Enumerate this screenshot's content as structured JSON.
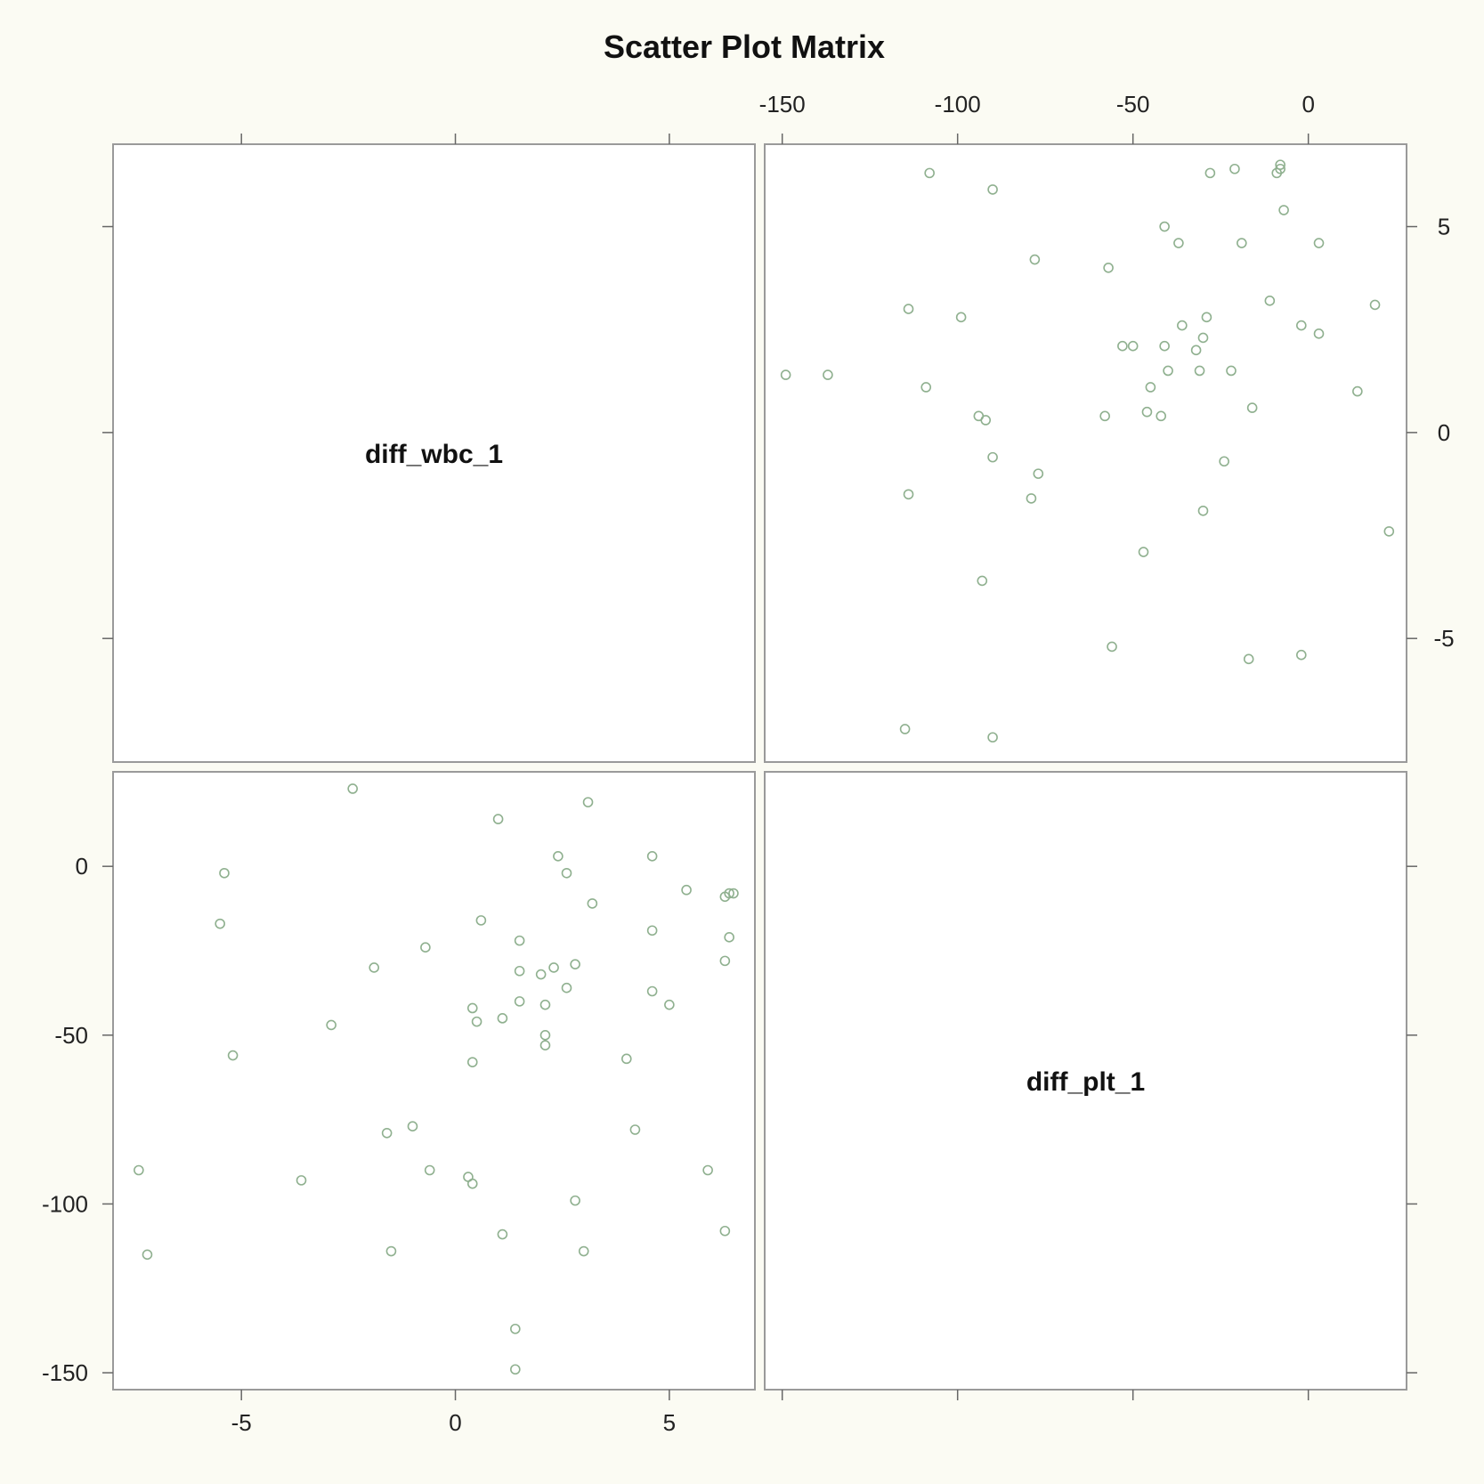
{
  "chart_data": {
    "type": "scatter",
    "title": "Scatter Plot Matrix",
    "variables": [
      "diff_wbc_1",
      "diff_plt_1"
    ],
    "axes": {
      "diff_wbc_1": {
        "range": [
          -8,
          7
        ],
        "ticks": [
          -5,
          0,
          5
        ]
      },
      "diff_plt_1": {
        "range": [
          -155,
          28
        ],
        "ticks": [
          -150,
          -100,
          -50,
          0
        ]
      }
    },
    "grid": false,
    "point_color": "#8fb08f",
    "points": [
      {
        "diff_wbc_1": 6.4,
        "diff_plt_1": -8
      },
      {
        "diff_wbc_1": 6.5,
        "diff_plt_1": -8
      },
      {
        "diff_wbc_1": 6.3,
        "diff_plt_1": -9
      },
      {
        "diff_wbc_1": 5.4,
        "diff_plt_1": -7
      },
      {
        "diff_wbc_1": 6.4,
        "diff_plt_1": -21
      },
      {
        "diff_wbc_1": 6.3,
        "diff_plt_1": -28
      },
      {
        "diff_wbc_1": 4.6,
        "diff_plt_1": 3
      },
      {
        "diff_wbc_1": 4.6,
        "diff_plt_1": -19
      },
      {
        "diff_wbc_1": 4.6,
        "diff_plt_1": -37
      },
      {
        "diff_wbc_1": 5.0,
        "diff_plt_1": -41
      },
      {
        "diff_wbc_1": 3.1,
        "diff_plt_1": 19
      },
      {
        "diff_wbc_1": 3.2,
        "diff_plt_1": -11
      },
      {
        "diff_wbc_1": 2.4,
        "diff_plt_1": 3
      },
      {
        "diff_wbc_1": 2.6,
        "diff_plt_1": -2
      },
      {
        "diff_wbc_1": 2.8,
        "diff_plt_1": -29
      },
      {
        "diff_wbc_1": 2.3,
        "diff_plt_1": -30
      },
      {
        "diff_wbc_1": 2.0,
        "diff_plt_1": -32
      },
      {
        "diff_wbc_1": 2.6,
        "diff_plt_1": -36
      },
      {
        "diff_wbc_1": 2.1,
        "diff_plt_1": -41
      },
      {
        "diff_wbc_1": 1.0,
        "diff_plt_1": 14
      },
      {
        "diff_wbc_1": 1.5,
        "diff_plt_1": -22
      },
      {
        "diff_wbc_1": 1.5,
        "diff_plt_1": -31
      },
      {
        "diff_wbc_1": 1.5,
        "diff_plt_1": -40
      },
      {
        "diff_wbc_1": 0.6,
        "diff_plt_1": -16
      },
      {
        "diff_wbc_1": 0.4,
        "diff_plt_1": -42
      },
      {
        "diff_wbc_1": 0.5,
        "diff_plt_1": -46
      },
      {
        "diff_wbc_1": 1.1,
        "diff_plt_1": -45
      },
      {
        "diff_wbc_1": 2.1,
        "diff_plt_1": -50
      },
      {
        "diff_wbc_1": 2.1,
        "diff_plt_1": -53
      },
      {
        "diff_wbc_1": 0.4,
        "diff_plt_1": -58
      },
      {
        "diff_wbc_1": 4.0,
        "diff_plt_1": -57
      },
      {
        "diff_wbc_1": -0.7,
        "diff_plt_1": -24
      },
      {
        "diff_wbc_1": -1.9,
        "diff_plt_1": -30
      },
      {
        "diff_wbc_1": -2.9,
        "diff_plt_1": -47
      },
      {
        "diff_wbc_1": -2.4,
        "diff_plt_1": 23
      },
      {
        "diff_wbc_1": -5.4,
        "diff_plt_1": -2
      },
      {
        "diff_wbc_1": -5.5,
        "diff_plt_1": -17
      },
      {
        "diff_wbc_1": -5.2,
        "diff_plt_1": -56
      },
      {
        "diff_wbc_1": 4.2,
        "diff_plt_1": -78
      },
      {
        "diff_wbc_1": -1.0,
        "diff_plt_1": -77
      },
      {
        "diff_wbc_1": -1.6,
        "diff_plt_1": -79
      },
      {
        "diff_wbc_1": 5.9,
        "diff_plt_1": -90
      },
      {
        "diff_wbc_1": -0.6,
        "diff_plt_1": -90
      },
      {
        "diff_wbc_1": 0.3,
        "diff_plt_1": -92
      },
      {
        "diff_wbc_1": 0.4,
        "diff_plt_1": -94
      },
      {
        "diff_wbc_1": -3.6,
        "diff_plt_1": -93
      },
      {
        "diff_wbc_1": -7.4,
        "diff_plt_1": -90
      },
      {
        "diff_wbc_1": 2.8,
        "diff_plt_1": -99
      },
      {
        "diff_wbc_1": 6.3,
        "diff_plt_1": -108
      },
      {
        "diff_wbc_1": 1.1,
        "diff_plt_1": -109
      },
      {
        "diff_wbc_1": -7.2,
        "diff_plt_1": -115
      },
      {
        "diff_wbc_1": -1.5,
        "diff_plt_1": -114
      },
      {
        "diff_wbc_1": 3.0,
        "diff_plt_1": -114
      },
      {
        "diff_wbc_1": 1.4,
        "diff_plt_1": -137
      },
      {
        "diff_wbc_1": 1.4,
        "diff_plt_1": -149
      }
    ]
  }
}
